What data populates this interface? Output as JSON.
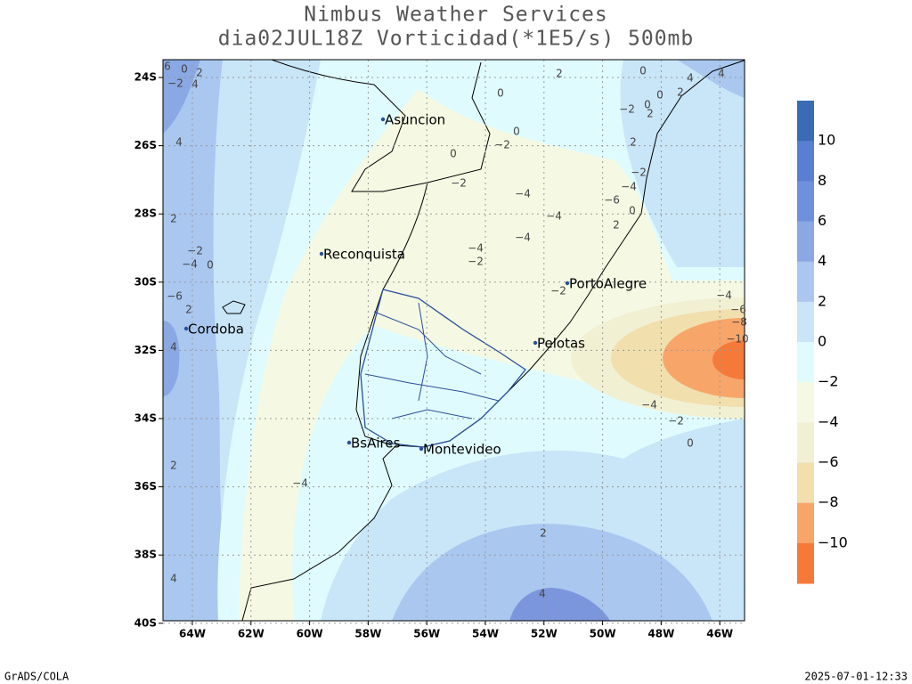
{
  "header": {
    "title": "Nimbus Weather Services",
    "subtitle": "dia02JUL18Z Vorticidad(*1E5/s) 500mb"
  },
  "axes": {
    "latitudes": [
      "24S",
      "26S",
      "28S",
      "30S",
      "32S",
      "34S",
      "36S",
      "38S",
      "40S"
    ],
    "longitudes": [
      "64W",
      "62W",
      "60W",
      "58W",
      "56W",
      "54W",
      "52W",
      "50W",
      "48W",
      "46W"
    ]
  },
  "cities": [
    "Asuncion",
    "Reconquista",
    "Cordoba",
    "PortoAlegre",
    "Pelotas",
    "BsAires",
    "Montevideo"
  ],
  "contour_labels": [
    "6",
    "0",
    "2",
    "−2",
    "4",
    "2",
    "0",
    "4",
    "4",
    "0",
    "−2",
    "0",
    "2",
    "0",
    "2",
    "4",
    "0",
    "−2",
    "0",
    "2",
    "−2",
    "−2",
    "−4",
    "−4",
    "−6",
    "−4",
    "0",
    "2",
    "2",
    "−4",
    "−4",
    "−2",
    "−2",
    "−4",
    "0",
    "−2",
    "−6",
    "−4",
    "2",
    "−6",
    "−8",
    "−10",
    "4",
    "−4",
    "−2",
    "0",
    "2",
    "−4",
    "2",
    "4",
    "4"
  ],
  "colorbar": {
    "labels": [
      "10",
      "8",
      "6",
      "4",
      "2",
      "0",
      "−2",
      "−4",
      "−6",
      "−8",
      "−10"
    ],
    "colors": [
      "#3c6bb6",
      "#5a7ed2",
      "#6f90dc",
      "#89a8e4",
      "#a9c7ef",
      "#c9e5f8",
      "#e0fbfd",
      "#f5f9e3",
      "#f2f0d3",
      "#f1dfae",
      "#f8a56a",
      "#f57a3a"
    ]
  },
  "footer": {
    "left": "GrADS/COLA",
    "right": "2025-07-01-12:33"
  }
}
